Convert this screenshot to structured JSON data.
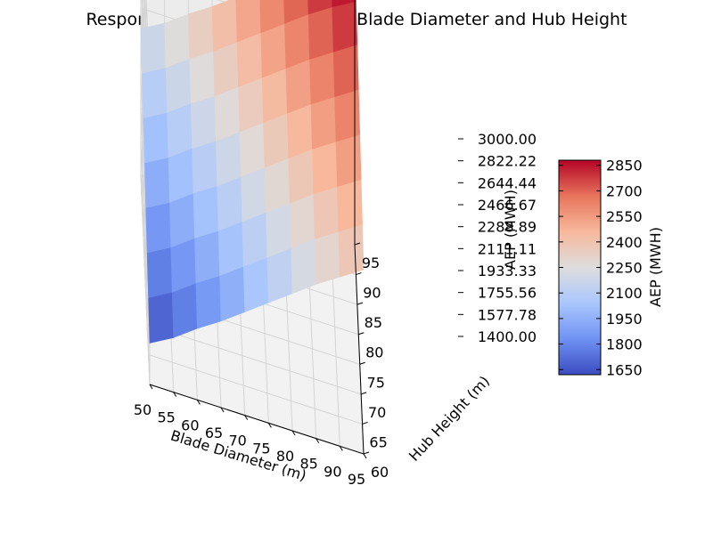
{
  "chart_data": {
    "type": "surface",
    "title": "Response Surface of AEP Given Blade Diameter and Hub Height",
    "xlabel": "Blade Diameter (m)",
    "ylabel": "Hub Height (m)",
    "zlabel": "AEP (MWH)",
    "colorbar_label": "AEP (MWH)",
    "xlim": [
      50,
      95
    ],
    "ylim": [
      60,
      95
    ],
    "zlim": [
      1400,
      3000
    ],
    "x_ticks": [
      "50",
      "55",
      "60",
      "65",
      "70",
      "75",
      "80",
      "85",
      "90",
      "95"
    ],
    "y_ticks": [
      "60",
      "65",
      "70",
      "75",
      "80",
      "85",
      "90",
      "95"
    ],
    "z_ticks": [
      "1400.00",
      "1577.78",
      "1755.56",
      "1933.33",
      "2111.11",
      "2288.89",
      "2466.67",
      "2644.44",
      "2822.22",
      "3000.00"
    ],
    "colorbar_ticks": [
      "1650",
      "1800",
      "1950",
      "2100",
      "2250",
      "2400",
      "2550",
      "2700",
      "2850"
    ],
    "colorbar_range": [
      1620,
      2880
    ],
    "colormap": "coolwarm",
    "colormap_stops": [
      "#3b4cc0",
      "#6f92f3",
      "#aac7fd",
      "#dddddd",
      "#f7b89c",
      "#e7745b",
      "#b40426"
    ],
    "grid": true,
    "blade_diameter": [
      50,
      55,
      60,
      65,
      70,
      75,
      80,
      85,
      90,
      95
    ],
    "hub_height": [
      60,
      65,
      70,
      75,
      80,
      85,
      90,
      95
    ],
    "aep": [
      [
        1620,
        1700,
        1780,
        1860,
        1940,
        2020,
        2100,
        2180
      ],
      [
        1690,
        1770,
        1850,
        1930,
        2010,
        2090,
        2170,
        2250
      ],
      [
        1780,
        1860,
        1940,
        2020,
        2100,
        2180,
        2260,
        2340
      ],
      [
        1860,
        1940,
        2020,
        2100,
        2180,
        2260,
        2340,
        2420
      ],
      [
        1950,
        2030,
        2110,
        2190,
        2270,
        2350,
        2430,
        2510
      ],
      [
        2040,
        2120,
        2200,
        2280,
        2360,
        2440,
        2520,
        2600
      ],
      [
        2130,
        2210,
        2290,
        2370,
        2450,
        2530,
        2610,
        2690
      ],
      [
        2220,
        2300,
        2380,
        2460,
        2540,
        2620,
        2700,
        2780
      ],
      [
        2300,
        2380,
        2460,
        2540,
        2620,
        2700,
        2780,
        2850
      ],
      [
        2380,
        2460,
        2540,
        2620,
        2700,
        2780,
        2850,
        2880
      ]
    ]
  }
}
